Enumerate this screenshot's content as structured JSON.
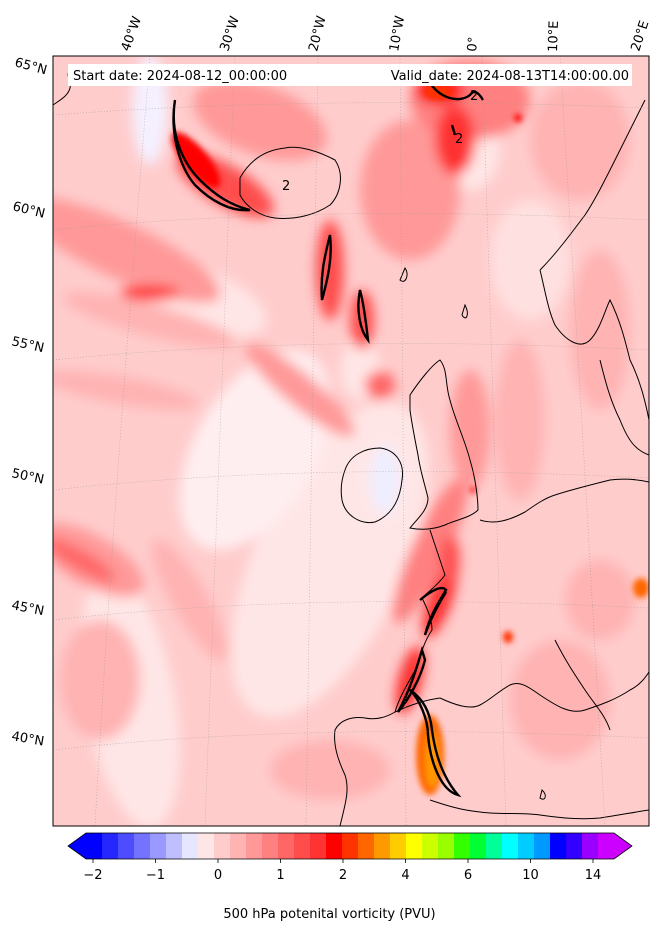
{
  "chart_data": {
    "type": "heatmap",
    "title": "",
    "annotations": {
      "start_date": "Start date: 2024-08-12_00:00:00",
      "valid_date": "Valid_date: 2024-08-13T14:00:00.00"
    },
    "lon_labels": [
      "40°W",
      "30°W",
      "20°W",
      "10°W",
      "0°",
      "10°E",
      "20°E"
    ],
    "lat_labels": [
      "65°N",
      "60°N",
      "55°N",
      "50°N",
      "45°N",
      "40°N"
    ],
    "contour_labels": [
      "2",
      "2",
      "2"
    ],
    "colorbar": {
      "label": "500 hPa potenital vorticity (PVU)",
      "tick_labels": [
        "−2",
        "−1",
        "0",
        "1",
        "2",
        "4",
        "6",
        "10",
        "14"
      ],
      "extend": "both",
      "colors": [
        "#0000ff",
        "#2626ff",
        "#4d4dff",
        "#7373ff",
        "#9999ff",
        "#bfbfff",
        "#e6e6ff",
        "#ffe6e6",
        "#ffcccc",
        "#ffb3b3",
        "#ff9999",
        "#ff8080",
        "#ff6666",
        "#ff4d4d",
        "#ff3333",
        "#ff0000",
        "#ff3300",
        "#ff6600",
        "#ff9900",
        "#ffcc00",
        "#ffff00",
        "#ccff00",
        "#99ff00",
        "#33ff00",
        "#00ff33",
        "#00ff99",
        "#00ffff",
        "#00ccff",
        "#0099ff",
        "#0000ff",
        "#3300ff",
        "#9900ff",
        "#cc00ff"
      ],
      "under_color": "#0000ff",
      "over_color": "#cc00ff"
    },
    "grid": true,
    "background_field_color": "#ffcccc"
  }
}
